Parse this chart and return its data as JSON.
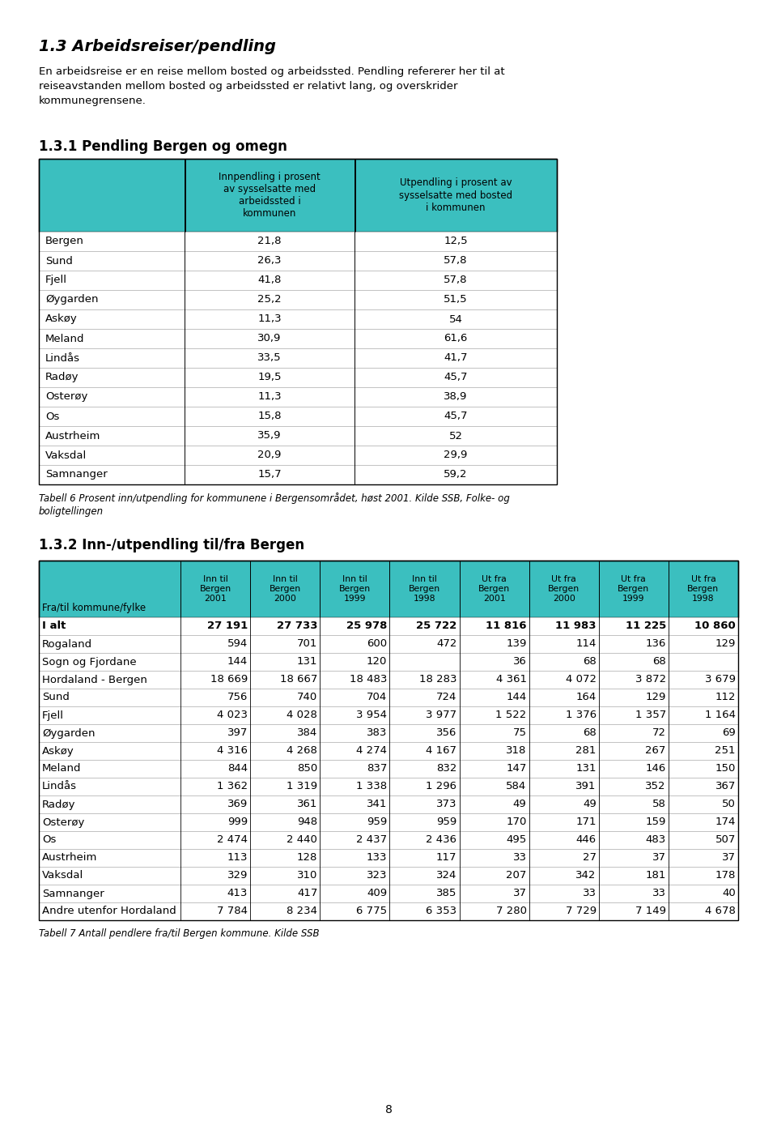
{
  "page_bg": "#ffffff",
  "teal_color": "#3bbfbf",
  "heading1_text": "1.3 Arbeidsreiser/pendling",
  "intro_text": "En arbeidsreise er en reise mellom bosted og arbeidssted. Pendling refererer her til at\nreiseavstanden mellom bosted og arbeidssted er relativt lang, og overskrider\nkommunegrensene.",
  "section1_title": "1.3.1 Pendling Bergen og omegn",
  "table1_header_col2": "Innpendling i prosent\nav sysselsatte med\narbeidssted i\nkommunen",
  "table1_header_col3": "Utpendling i prosent av\nsysselsatte med bosted\ni kommunen",
  "table1_rows": [
    [
      "Bergen",
      "21,8",
      "12,5"
    ],
    [
      "Sund",
      "26,3",
      "57,8"
    ],
    [
      "Fjell",
      "41,8",
      "57,8"
    ],
    [
      "Øygarden",
      "25,2",
      "51,5"
    ],
    [
      "Askøy",
      "11,3",
      "54"
    ],
    [
      "Meland",
      "30,9",
      "61,6"
    ],
    [
      "Lindås",
      "33,5",
      "41,7"
    ],
    [
      "Radøy",
      "19,5",
      "45,7"
    ],
    [
      "Osterøy",
      "11,3",
      "38,9"
    ],
    [
      "Os",
      "15,8",
      "45,7"
    ],
    [
      "Austrheim",
      "35,9",
      "52"
    ],
    [
      "Vaksdal",
      "20,9",
      "29,9"
    ],
    [
      "Samnanger",
      "15,7",
      "59,2"
    ]
  ],
  "table1_caption": "Tabell 6 Prosent inn/utpendling for kommunene i Bergensområdet, høst 2001. Kilde SSB, Folke- og\nboligtellingen",
  "section2_title": "1.3.2 Inn-/utpendling til/fra Bergen",
  "table2_headers": [
    "Fra/til kommune/fylke",
    "Inn til\nBergen\n2001",
    "Inn til\nBergen\n2000",
    "Inn til\nBergen\n1999",
    "Inn til\nBergen\n1998",
    "Ut fra\nBergen\n2001",
    "Ut fra\nBergen\n2000",
    "Ut fra\nBergen\n1999",
    "Ut fra\nBergen\n1998"
  ],
  "table2_rows": [
    [
      "I alt",
      "27 191",
      "27 733",
      "25 978",
      "25 722",
      "11 816",
      "11 983",
      "11 225",
      "10 860"
    ],
    [
      "Rogaland",
      "594",
      "701",
      "600",
      "472",
      "139",
      "114",
      "136",
      "129"
    ],
    [
      "Sogn og Fjordane",
      "144",
      "131",
      "120",
      "",
      "36",
      "68",
      "68",
      ""
    ],
    [
      "Hordaland - Bergen",
      "18 669",
      "18 667",
      "18 483",
      "18 283",
      "4 361",
      "4 072",
      "3 872",
      "3 679"
    ],
    [
      "Sund",
      "756",
      "740",
      "704",
      "724",
      "144",
      "164",
      "129",
      "112"
    ],
    [
      "Fjell",
      "4 023",
      "4 028",
      "3 954",
      "3 977",
      "1 522",
      "1 376",
      "1 357",
      "1 164"
    ],
    [
      "Øygarden",
      "397",
      "384",
      "383",
      "356",
      "75",
      "68",
      "72",
      "69"
    ],
    [
      "Askøy",
      "4 316",
      "4 268",
      "4 274",
      "4 167",
      "318",
      "281",
      "267",
      "251"
    ],
    [
      "Meland",
      "844",
      "850",
      "837",
      "832",
      "147",
      "131",
      "146",
      "150"
    ],
    [
      "Lindås",
      "1 362",
      "1 319",
      "1 338",
      "1 296",
      "584",
      "391",
      "352",
      "367"
    ],
    [
      "Radøy",
      "369",
      "361",
      "341",
      "373",
      "49",
      "49",
      "58",
      "50"
    ],
    [
      "Osterøy",
      "999",
      "948",
      "959",
      "959",
      "170",
      "171",
      "159",
      "174"
    ],
    [
      "Os",
      "2 474",
      "2 440",
      "2 437",
      "2 436",
      "495",
      "446",
      "483",
      "507"
    ],
    [
      "Austrheim",
      "113",
      "128",
      "133",
      "117",
      "33",
      "27",
      "37",
      "37"
    ],
    [
      "Vaksdal",
      "329",
      "310",
      "323",
      "324",
      "207",
      "342",
      "181",
      "178"
    ],
    [
      "Samnanger",
      "413",
      "417",
      "409",
      "385",
      "37",
      "33",
      "33",
      "40"
    ],
    [
      "Andre utenfor Hordaland",
      "7 784",
      "8 234",
      "6 775",
      "6 353",
      "7 280",
      "7 729",
      "7 149",
      "4 678"
    ]
  ],
  "table2_caption": "Tabell 7 Antall pendlere fra/til Bergen kommune. Kilde SSB",
  "page_number": "8"
}
